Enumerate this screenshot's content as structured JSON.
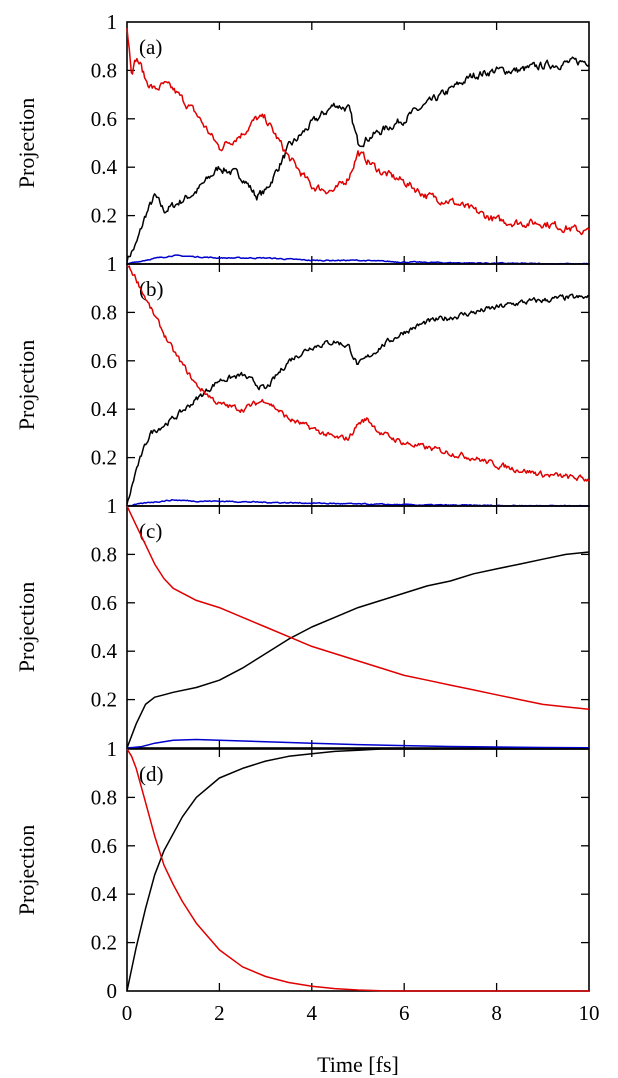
{
  "chart_data": [
    {
      "type": "line",
      "panel_label": "(a)",
      "xlabel": "",
      "ylabel": "Projection",
      "xlim": [
        0,
        10
      ],
      "ylim": [
        0,
        1
      ],
      "yticks": [
        "1",
        "0.8",
        "0.6",
        "0.4",
        "0.2"
      ],
      "xticks": [],
      "series": [
        {
          "color": "#000000",
          "noise": 0.014,
          "x": [
            0,
            0.2,
            0.4,
            0.6,
            0.8,
            1,
            1.5,
            2,
            2.5,
            2.8,
            3,
            3.5,
            4,
            4.5,
            4.8,
            5,
            5.5,
            6,
            6.5,
            7,
            7.5,
            8,
            8.5,
            9,
            9.5,
            10
          ],
          "y": [
            0.02,
            0.08,
            0.2,
            0.28,
            0.22,
            0.24,
            0.3,
            0.4,
            0.36,
            0.28,
            0.3,
            0.48,
            0.58,
            0.66,
            0.64,
            0.5,
            0.55,
            0.6,
            0.66,
            0.72,
            0.78,
            0.8,
            0.8,
            0.82,
            0.83,
            0.84
          ]
        },
        {
          "color": "#e00000",
          "noise": 0.014,
          "x": [
            0,
            0.1,
            0.2,
            0.3,
            0.4,
            0.6,
            0.8,
            1,
            1.5,
            2,
            2.5,
            2.8,
            3,
            3.5,
            4,
            4.5,
            4.8,
            5,
            5.5,
            6,
            6.5,
            7,
            7.5,
            8,
            8.5,
            9,
            9.5,
            10
          ],
          "y": [
            0.98,
            0.8,
            0.85,
            0.82,
            0.76,
            0.72,
            0.74,
            0.72,
            0.62,
            0.48,
            0.54,
            0.6,
            0.6,
            0.44,
            0.32,
            0.3,
            0.36,
            0.46,
            0.38,
            0.34,
            0.28,
            0.26,
            0.22,
            0.18,
            0.17,
            0.17,
            0.15,
            0.13
          ]
        },
        {
          "color": "#0000cc",
          "noise": 0.002,
          "x": [
            0,
            0.5,
            1,
            1.5,
            2,
            3,
            4,
            5,
            6,
            7,
            8,
            9,
            10
          ],
          "y": [
            0,
            0.02,
            0.035,
            0.03,
            0.025,
            0.025,
            0.015,
            0.015,
            0.008,
            0.005,
            0.003,
            0.001,
            0
          ]
        }
      ]
    },
    {
      "type": "line",
      "panel_label": "(b)",
      "xlabel": "",
      "ylabel": "Projection",
      "xlim": [
        0,
        10
      ],
      "ylim": [
        0,
        1
      ],
      "yticks": [
        "1",
        "0.8",
        "0.6",
        "0.4",
        "0.2"
      ],
      "xticks": [],
      "series": [
        {
          "color": "#000000",
          "noise": 0.01,
          "x": [
            0,
            0.2,
            0.5,
            1,
            1.5,
            2,
            2.5,
            3,
            3.5,
            4,
            4.5,
            4.8,
            5,
            5.5,
            6,
            6.5,
            7,
            7.5,
            8,
            8.5,
            9,
            9.5,
            10
          ],
          "y": [
            0,
            0.15,
            0.3,
            0.36,
            0.44,
            0.52,
            0.54,
            0.48,
            0.6,
            0.66,
            0.68,
            0.66,
            0.58,
            0.66,
            0.72,
            0.76,
            0.78,
            0.8,
            0.82,
            0.84,
            0.85,
            0.86,
            0.86
          ]
        },
        {
          "color": "#e00000",
          "noise": 0.01,
          "x": [
            0,
            0.2,
            0.5,
            1,
            1.5,
            2,
            2.5,
            3,
            3.5,
            4,
            4.5,
            4.8,
            5,
            5.2,
            5.5,
            6,
            6.5,
            7,
            7.5,
            8,
            8.5,
            9,
            9.5,
            10
          ],
          "y": [
            1,
            0.94,
            0.82,
            0.64,
            0.5,
            0.42,
            0.4,
            0.44,
            0.36,
            0.32,
            0.28,
            0.28,
            0.34,
            0.36,
            0.3,
            0.26,
            0.24,
            0.22,
            0.2,
            0.17,
            0.15,
            0.13,
            0.12,
            0.11
          ]
        },
        {
          "color": "#0000cc",
          "noise": 0.002,
          "x": [
            0,
            0.5,
            1,
            1.5,
            2,
            3,
            4,
            5,
            6,
            7,
            8,
            9,
            10
          ],
          "y": [
            0,
            0.015,
            0.025,
            0.02,
            0.02,
            0.015,
            0.012,
            0.008,
            0.005,
            0.003,
            0.002,
            0.001,
            0
          ]
        }
      ]
    },
    {
      "type": "line",
      "panel_label": "(c)",
      "xlabel": "",
      "ylabel": "Projection",
      "xlim": [
        0,
        10
      ],
      "ylim": [
        0,
        1
      ],
      "yticks": [
        "1",
        "0.8",
        "0.6",
        "0.4",
        "0.2"
      ],
      "xticks": [],
      "series": [
        {
          "color": "#000000",
          "noise": 0,
          "x": [
            0,
            0.2,
            0.4,
            0.6,
            0.8,
            1,
            1.5,
            2,
            2.5,
            3,
            3.5,
            4,
            4.5,
            5,
            5.5,
            6,
            6.5,
            7,
            7.5,
            8,
            8.5,
            9,
            9.5,
            10
          ],
          "y": [
            0,
            0.1,
            0.18,
            0.21,
            0.22,
            0.23,
            0.25,
            0.28,
            0.33,
            0.39,
            0.45,
            0.5,
            0.54,
            0.58,
            0.61,
            0.64,
            0.67,
            0.69,
            0.72,
            0.74,
            0.76,
            0.78,
            0.8,
            0.81
          ]
        },
        {
          "color": "#e00000",
          "noise": 0,
          "x": [
            0,
            0.2,
            0.4,
            0.6,
            0.8,
            1,
            1.5,
            2,
            2.5,
            3,
            3.5,
            4,
            4.5,
            5,
            5.5,
            6,
            6.5,
            7,
            7.5,
            8,
            8.5,
            9,
            9.5,
            10
          ],
          "y": [
            1,
            0.92,
            0.84,
            0.76,
            0.7,
            0.66,
            0.61,
            0.58,
            0.54,
            0.5,
            0.46,
            0.42,
            0.39,
            0.36,
            0.33,
            0.3,
            0.28,
            0.26,
            0.24,
            0.22,
            0.2,
            0.18,
            0.17,
            0.16
          ]
        },
        {
          "color": "#0000cc",
          "noise": 0,
          "x": [
            0,
            0.3,
            0.6,
            1,
            1.5,
            2,
            3,
            4,
            5,
            6,
            7,
            8,
            9,
            10
          ],
          "y": [
            0,
            0.005,
            0.02,
            0.032,
            0.035,
            0.032,
            0.026,
            0.02,
            0.014,
            0.01,
            0.006,
            0.004,
            0.002,
            0.001
          ]
        }
      ]
    },
    {
      "type": "line",
      "panel_label": "(d)",
      "xlabel": "Time [fs]",
      "ylabel": "Projection",
      "xlim": [
        0,
        10
      ],
      "ylim": [
        0,
        1
      ],
      "yticks": [
        "1",
        "0.8",
        "0.6",
        "0.4",
        "0.2",
        "0"
      ],
      "xticks": [
        "0",
        "2",
        "4",
        "6",
        "8",
        "10"
      ],
      "series": [
        {
          "color": "#000000",
          "noise": 0,
          "x": [
            0,
            0.2,
            0.4,
            0.6,
            0.8,
            1,
            1.2,
            1.5,
            2,
            2.5,
            3,
            3.5,
            4,
            4.5,
            5,
            5.5,
            6,
            7,
            8,
            9,
            10
          ],
          "y": [
            0,
            0.18,
            0.34,
            0.48,
            0.58,
            0.65,
            0.72,
            0.8,
            0.88,
            0.92,
            0.95,
            0.97,
            0.98,
            0.99,
            0.995,
            1,
            1,
            1,
            1,
            1,
            1
          ]
        },
        {
          "color": "#e00000",
          "noise": 0,
          "x": [
            0,
            0.1,
            0.2,
            0.4,
            0.6,
            0.8,
            1,
            1.2,
            1.5,
            2,
            2.5,
            3,
            3.5,
            4,
            4.5,
            5,
            5.5,
            6,
            7,
            8,
            9,
            10
          ],
          "y": [
            1,
            0.97,
            0.92,
            0.78,
            0.64,
            0.52,
            0.44,
            0.37,
            0.28,
            0.17,
            0.1,
            0.06,
            0.035,
            0.02,
            0.01,
            0.004,
            0.001,
            0,
            0,
            0,
            0,
            0
          ]
        }
      ]
    }
  ]
}
